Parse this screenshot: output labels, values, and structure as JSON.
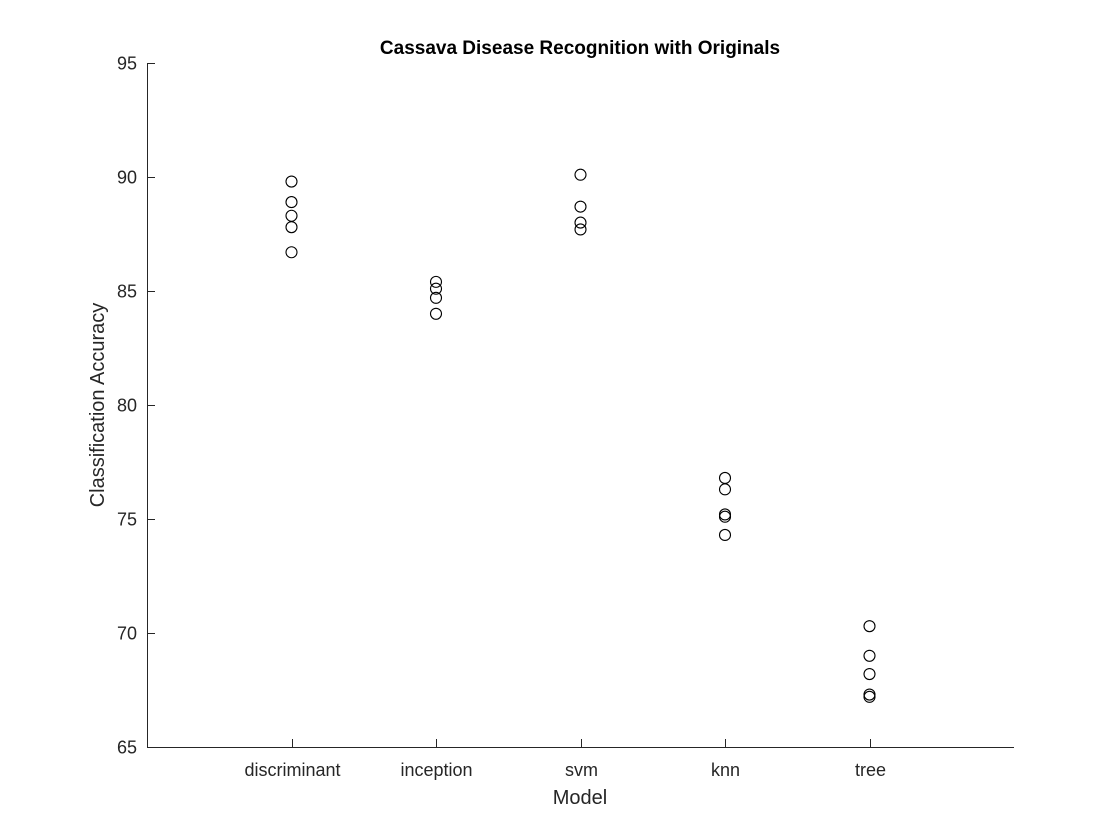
{
  "chart_data": {
    "type": "scatter",
    "title": "Cassava Disease Recognition with Originals",
    "xlabel": "Model",
    "ylabel": "Classification Accuracy",
    "categories": [
      "discriminant",
      "inception",
      "svm",
      "knn",
      "tree"
    ],
    "ylim": [
      65,
      95
    ],
    "yticks": [
      "65",
      "70",
      "75",
      "80",
      "85",
      "90",
      "95"
    ],
    "grid": false,
    "legend": "none",
    "marker_color": "#000000",
    "series": [
      {
        "category": "discriminant",
        "values": [
          89.8,
          88.9,
          88.3,
          87.8,
          86.7
        ]
      },
      {
        "category": "inception",
        "values": [
          85.4,
          85.1,
          84.7,
          84.0
        ]
      },
      {
        "category": "svm",
        "values": [
          90.1,
          88.7,
          88.0,
          87.7
        ]
      },
      {
        "category": "knn",
        "values": [
          76.8,
          76.3,
          75.2,
          75.1,
          74.3
        ]
      },
      {
        "category": "tree",
        "values": [
          70.3,
          69.0,
          68.2,
          67.3,
          67.2
        ]
      }
    ]
  }
}
